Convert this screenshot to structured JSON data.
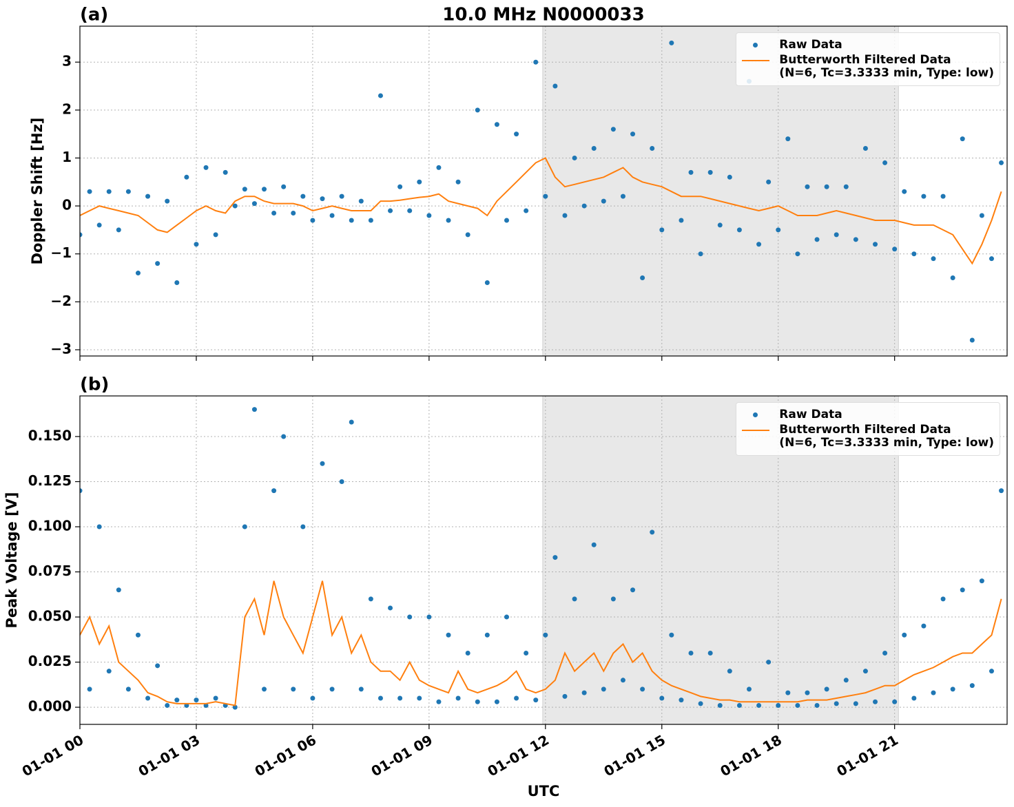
{
  "chart_data": [
    {
      "type": "scatter-line",
      "panel_label": "(a)",
      "title": "10.0 MHz N0000033",
      "ylabel": "Doppler Shift [Hz]",
      "xlim": [
        0,
        23.9
      ],
      "ylim": [
        -3.13,
        3.75
      ],
      "xticks": [
        0,
        3,
        6,
        9,
        12,
        15,
        18,
        21
      ],
      "yticks": [
        {
          "value": -3,
          "label": "−3"
        },
        {
          "value": -2,
          "label": "−2"
        },
        {
          "value": -1,
          "label": "−1"
        },
        0,
        1,
        2,
        3
      ],
      "grid": true,
      "legend": "upper-right",
      "shaded_span": [
        11.93,
        21.1
      ],
      "x": [
        0,
        0.25,
        0.5,
        0.75,
        1,
        1.25,
        1.5,
        1.75,
        2,
        2.25,
        2.5,
        2.75,
        3,
        3.25,
        3.5,
        3.75,
        4,
        4.25,
        4.5,
        4.75,
        5,
        5.25,
        5.5,
        5.75,
        6,
        6.25,
        6.5,
        6.75,
        7,
        7.25,
        7.5,
        7.75,
        8,
        8.25,
        8.5,
        8.75,
        9,
        9.25,
        9.5,
        9.75,
        10,
        10.25,
        10.5,
        10.75,
        11,
        11.25,
        11.5,
        11.75,
        12,
        12.25,
        12.5,
        12.75,
        13,
        13.25,
        13.5,
        13.75,
        14,
        14.25,
        14.5,
        14.75,
        15,
        15.25,
        15.5,
        15.75,
        16,
        16.25,
        16.5,
        16.75,
        17,
        17.25,
        17.5,
        17.75,
        18,
        18.25,
        18.5,
        18.75,
        19,
        19.25,
        19.5,
        19.75,
        20,
        20.25,
        20.5,
        20.75,
        21,
        21.25,
        21.5,
        21.75,
        22,
        22.25,
        22.5,
        22.75,
        23,
        23.25,
        23.5,
        23.75
      ],
      "series": [
        {
          "name": "Raw Data",
          "kind": "points",
          "color": "#1f77b4",
          "values": [
            -0.6,
            0.3,
            -0.4,
            0.3,
            -0.5,
            0.3,
            -1.4,
            0.2,
            -1.2,
            0.1,
            -1.6,
            0.6,
            -0.8,
            0.8,
            -0.6,
            0.7,
            0.0,
            0.35,
            0.05,
            0.35,
            -0.15,
            0.4,
            -0.15,
            0.2,
            -0.3,
            0.15,
            -0.2,
            0.2,
            -0.3,
            0.1,
            -0.3,
            2.3,
            -0.1,
            0.4,
            -0.1,
            0.5,
            -0.2,
            0.8,
            -0.3,
            0.5,
            -0.6,
            2.0,
            -1.6,
            1.7,
            -0.3,
            1.5,
            -0.1,
            3.0,
            0.2,
            2.5,
            -0.2,
            1.0,
            0.0,
            1.2,
            0.1,
            1.6,
            0.2,
            1.5,
            -1.5,
            1.2,
            -0.5,
            3.4,
            -0.3,
            0.7,
            -1.0,
            0.7,
            -0.4,
            0.6,
            -0.5,
            2.6,
            -0.8,
            0.5,
            -0.5,
            1.4,
            -1.0,
            0.4,
            -0.7,
            0.4,
            -0.6,
            0.4,
            -0.7,
            1.2,
            -0.8,
            0.9,
            -0.9,
            0.3,
            -1.0,
            0.2,
            -1.1,
            0.2,
            -1.5,
            1.4,
            -2.8,
            -0.2,
            -1.1,
            0.9
          ]
        },
        {
          "name": "Butterworth Filtered Data\n(N=6, Tc=3.3333 min, Type: low)",
          "kind": "line",
          "color": "#ff7f0e",
          "values": [
            -0.2,
            -0.1,
            0.0,
            -0.05,
            -0.1,
            -0.15,
            -0.2,
            -0.35,
            -0.5,
            -0.55,
            -0.4,
            -0.25,
            -0.1,
            0.0,
            -0.1,
            -0.15,
            0.1,
            0.2,
            0.2,
            0.1,
            0.05,
            0.05,
            0.05,
            0.0,
            -0.1,
            -0.05,
            0.0,
            -0.05,
            -0.1,
            -0.1,
            -0.1,
            0.1,
            0.1,
            0.12,
            0.15,
            0.18,
            0.2,
            0.25,
            0.1,
            0.05,
            0.0,
            -0.05,
            -0.2,
            0.1,
            0.3,
            0.5,
            0.7,
            0.9,
            1.0,
            0.6,
            0.4,
            0.45,
            0.5,
            0.55,
            0.6,
            0.7,
            0.8,
            0.6,
            0.5,
            0.45,
            0.4,
            0.3,
            0.2,
            0.2,
            0.2,
            0.15,
            0.1,
            0.05,
            0.0,
            -0.05,
            -0.1,
            -0.05,
            0.0,
            -0.1,
            -0.2,
            -0.2,
            -0.2,
            -0.15,
            -0.1,
            -0.15,
            -0.2,
            -0.25,
            -0.3,
            -0.3,
            -0.3,
            -0.35,
            -0.4,
            -0.4,
            -0.4,
            -0.5,
            -0.6,
            -0.9,
            -1.2,
            -0.8,
            -0.3,
            0.3
          ]
        }
      ]
    },
    {
      "type": "scatter-line",
      "panel_label": "(b)",
      "ylabel": "Peak Voltage [V]",
      "xlabel": "UTC",
      "xlim": [
        0,
        23.9
      ],
      "ylim": [
        -0.0095,
        0.1725
      ],
      "xticks": [
        {
          "value": 0,
          "label": "01-01 00"
        },
        {
          "value": 3,
          "label": "01-01 03"
        },
        {
          "value": 6,
          "label": "01-01 06"
        },
        {
          "value": 9,
          "label": "01-01 09"
        },
        {
          "value": 12,
          "label": "01-01 12"
        },
        {
          "value": 15,
          "label": "01-01 15"
        },
        {
          "value": 18,
          "label": "01-01 18"
        },
        {
          "value": 21,
          "label": "01-01 21"
        }
      ],
      "yticks": [
        {
          "value": 0,
          "label": "0.000"
        },
        {
          "value": 0.025,
          "label": "0.025"
        },
        {
          "value": 0.05,
          "label": "0.050"
        },
        {
          "value": 0.075,
          "label": "0.075"
        },
        {
          "value": 0.1,
          "label": "0.100"
        },
        {
          "value": 0.125,
          "label": "0.125"
        },
        {
          "value": 0.15,
          "label": "0.150"
        }
      ],
      "grid": true,
      "legend": "upper-right",
      "shaded_span": [
        11.93,
        21.1
      ],
      "x": [
        0,
        0.25,
        0.5,
        0.75,
        1,
        1.25,
        1.5,
        1.75,
        2,
        2.25,
        2.5,
        2.75,
        3,
        3.25,
        3.5,
        3.75,
        4,
        4.25,
        4.5,
        4.75,
        5,
        5.25,
        5.5,
        5.75,
        6,
        6.25,
        6.5,
        6.75,
        7,
        7.25,
        7.5,
        7.75,
        8,
        8.25,
        8.5,
        8.75,
        9,
        9.25,
        9.5,
        9.75,
        10,
        10.25,
        10.5,
        10.75,
        11,
        11.25,
        11.5,
        11.75,
        12,
        12.25,
        12.5,
        12.75,
        13,
        13.25,
        13.5,
        13.75,
        14,
        14.25,
        14.5,
        14.75,
        15,
        15.25,
        15.5,
        15.75,
        16,
        16.25,
        16.5,
        16.75,
        17,
        17.25,
        17.5,
        17.75,
        18,
        18.25,
        18.5,
        18.75,
        19,
        19.25,
        19.5,
        19.75,
        20,
        20.25,
        20.5,
        20.75,
        21,
        21.25,
        21.5,
        21.75,
        22,
        22.25,
        22.5,
        22.75,
        23,
        23.25,
        23.5,
        23.75
      ],
      "series": [
        {
          "name": "Raw Data",
          "kind": "points",
          "color": "#1f77b4",
          "values": [
            0.12,
            0.01,
            0.1,
            0.02,
            0.065,
            0.01,
            0.04,
            0.005,
            0.023,
            0.001,
            0.004,
            0.001,
            0.004,
            0.001,
            0.005,
            0.001,
            0.0,
            0.1,
            0.165,
            0.01,
            0.12,
            0.15,
            0.01,
            0.1,
            0.005,
            0.135,
            0.01,
            0.125,
            0.158,
            0.01,
            0.06,
            0.005,
            0.055,
            0.005,
            0.05,
            0.005,
            0.05,
            0.003,
            0.04,
            0.005,
            0.03,
            0.003,
            0.04,
            0.003,
            0.05,
            0.005,
            0.03,
            0.004,
            0.04,
            0.083,
            0.006,
            0.06,
            0.008,
            0.09,
            0.01,
            0.06,
            0.015,
            0.065,
            0.01,
            0.097,
            0.005,
            0.04,
            0.004,
            0.03,
            0.002,
            0.03,
            0.001,
            0.02,
            0.001,
            0.01,
            0.001,
            0.025,
            0.001,
            0.008,
            0.001,
            0.008,
            0.001,
            0.01,
            0.002,
            0.015,
            0.002,
            0.02,
            0.003,
            0.03,
            0.003,
            0.04,
            0.005,
            0.045,
            0.008,
            0.06,
            0.01,
            0.065,
            0.012,
            0.07,
            0.02,
            0.12
          ]
        },
        {
          "name": "Butterworth Filtered Data\n(N=6, Tc=3.3333 min, Type: low)",
          "kind": "line",
          "color": "#ff7f0e",
          "values": [
            0.04,
            0.05,
            0.035,
            0.045,
            0.025,
            0.02,
            0.015,
            0.008,
            0.006,
            0.003,
            0.002,
            0.002,
            0.002,
            0.002,
            0.003,
            0.002,
            0.001,
            0.05,
            0.06,
            0.04,
            0.07,
            0.05,
            0.04,
            0.03,
            0.05,
            0.07,
            0.04,
            0.05,
            0.03,
            0.04,
            0.025,
            0.02,
            0.02,
            0.015,
            0.025,
            0.015,
            0.012,
            0.01,
            0.008,
            0.02,
            0.01,
            0.008,
            0.01,
            0.012,
            0.015,
            0.02,
            0.01,
            0.008,
            0.01,
            0.015,
            0.03,
            0.02,
            0.025,
            0.03,
            0.02,
            0.03,
            0.035,
            0.025,
            0.03,
            0.02,
            0.015,
            0.012,
            0.01,
            0.008,
            0.006,
            0.005,
            0.004,
            0.004,
            0.003,
            0.003,
            0.003,
            0.003,
            0.003,
            0.003,
            0.003,
            0.004,
            0.004,
            0.004,
            0.005,
            0.006,
            0.007,
            0.008,
            0.01,
            0.012,
            0.012,
            0.015,
            0.018,
            0.02,
            0.022,
            0.025,
            0.028,
            0.03,
            0.03,
            0.035,
            0.04,
            0.06
          ]
        }
      ]
    }
  ]
}
